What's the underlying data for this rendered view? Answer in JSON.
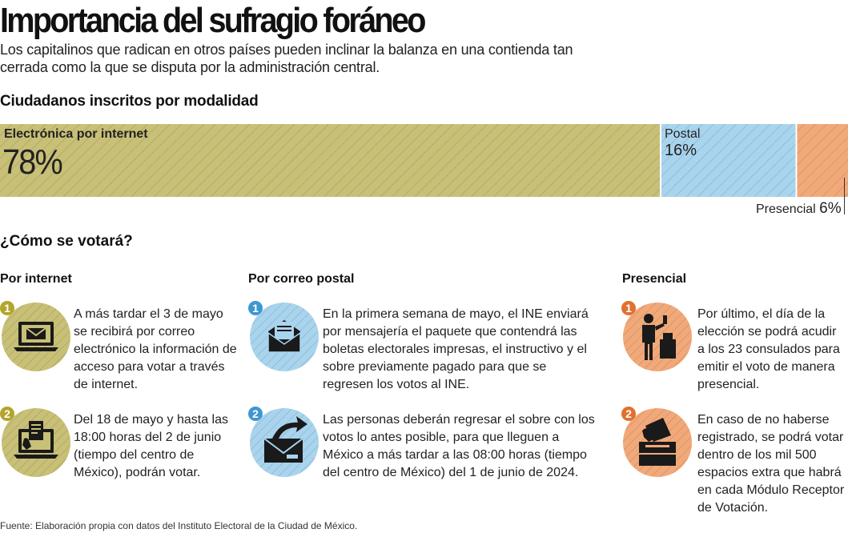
{
  "title": "Importancia del sufragio foráneo",
  "subtitle": "Los capitalinos que radican en otros países pueden inclinar la balanza en una contienda tan cerrada como la que se disputa por la administración central.",
  "chart_data": {
    "type": "bar",
    "title": "Ciudadanos inscritos por modalidad",
    "categories": [
      "Electrónica por internet",
      "Postal",
      "Presencial"
    ],
    "values": [
      78,
      16,
      6
    ],
    "value_labels": [
      "78%",
      "16%",
      "6%"
    ],
    "stacked": true,
    "orientation": "horizontal",
    "colors": [
      "#c9c077",
      "#a9d4ee",
      "#f2a97a"
    ]
  },
  "how_title": "¿Cómo se votará?",
  "columns": [
    {
      "title": "Por internet",
      "color": "#c9c077",
      "badge_color": "#b3a52d",
      "steps": [
        {
          "num": "1",
          "icon": "laptop-email-icon",
          "text": "A más tardar el 3 de mayo se recibirá por correo electrónico la información de acceso para votar a través de internet."
        },
        {
          "num": "2",
          "icon": "laptop-ballot-icon",
          "text": "Del 18 de mayo y hasta las 18:00 horas del 2 de junio (tiempo del centro de México), podrán votar."
        }
      ]
    },
    {
      "title": "Por correo postal",
      "color": "#a9d4ee",
      "badge_color": "#3f97d1",
      "steps": [
        {
          "num": "1",
          "icon": "open-envelope-icon",
          "text": "En la primera semana de mayo, el INE enviará por mensajería el paquete que contendrá las boletas electorales impresas, el instructivo y el sobre previamente pagado para que se regresen los votos al INE."
        },
        {
          "num": "2",
          "icon": "send-envelope-icon",
          "text": "Las personas deberán regresar el sobre con los votos lo antes posible, para que lleguen a México a más tardar a las 08:00 horas (tiempo del centro de México) del 1 de junio de 2024."
        }
      ]
    },
    {
      "title": "Presencial",
      "color": "#f2a97a",
      "badge_color": "#e0712e",
      "steps": [
        {
          "num": "1",
          "icon": "person-voting-icon",
          "text": "Por último, el día de la elección se podrá acudir a los 23 consulados para emitir el voto de manera presencial."
        },
        {
          "num": "2",
          "icon": "ballot-box-icon",
          "text": "En caso de no haberse registrado, se podrá votar dentro de los mil 500 espacios extra que habrá en cada Módulo Receptor de Votación."
        }
      ]
    }
  ],
  "source": "Fuente: Elaboración propia con datos del Instituto Electoral de la Ciudad de México."
}
